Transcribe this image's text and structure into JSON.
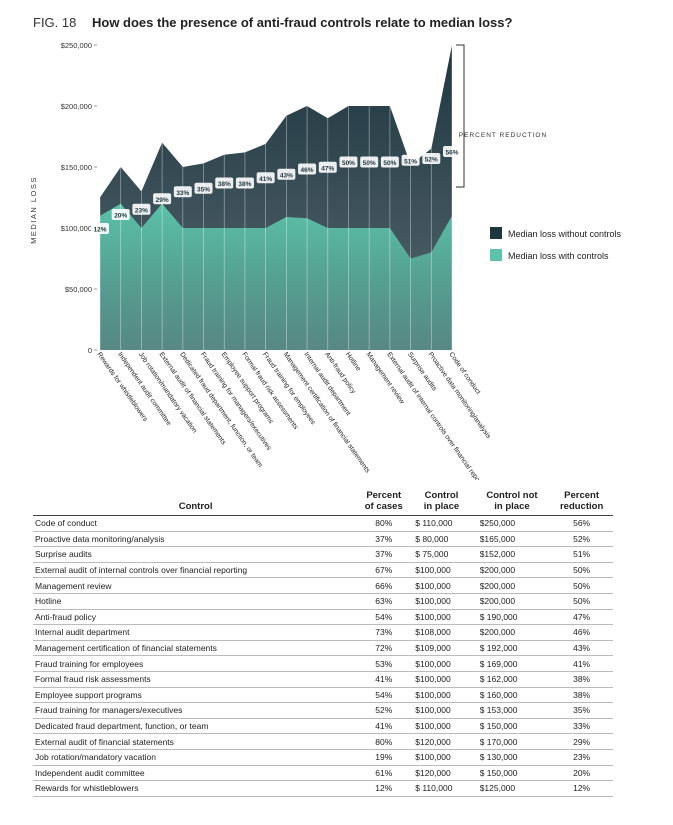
{
  "chart_data": {
    "type": "area",
    "fig": "FIG. 18",
    "title": "How does the presence of anti-fraud controls relate to median loss?",
    "ylabel": "MEDIAN LOSS",
    "annotation": "PERCENT REDUCTION",
    "categories": [
      "Rewards for whistleblowers",
      "Independent audit committee",
      "Job rotation/mandatory vacation",
      "External audit of financial statements",
      "Dedicated fraud department, function, or team",
      "Fraud training for managers/executives",
      "Employee support programs",
      "Formal fraud risk assessments",
      "Fraud training for employees",
      "Management certification of financial statements",
      "Internal audit department",
      "Anti-fraud policy",
      "Hotline",
      "Management review",
      "External audit of internal controls over financial reporting",
      "Surprise audits",
      "Proactive data monitoring/analysis",
      "Code of conduct"
    ],
    "series": [
      {
        "name": "Median loss without controls",
        "color": "#1e3640",
        "values": [
          125000,
          150000,
          130000,
          170000,
          150000,
          153000,
          160000,
          162000,
          169000,
          192000,
          200000,
          190000,
          200000,
          200000,
          200000,
          152000,
          165000,
          250000
        ]
      },
      {
        "name": "Median loss with controls",
        "color": "#5cc2a9",
        "values": [
          110000,
          120000,
          100000,
          120000,
          100000,
          100000,
          100000,
          100000,
          100000,
          109000,
          108000,
          100000,
          100000,
          100000,
          100000,
          75000,
          80000,
          110000
        ]
      }
    ],
    "reduction": {
      "values": [
        12,
        20,
        23,
        29,
        33,
        35,
        38,
        38,
        41,
        43,
        46,
        47,
        50,
        50,
        50,
        51,
        52,
        56
      ],
      "value_labels": [
        "12%",
        "20%",
        "23%",
        "29%",
        "33%",
        "35%",
        "38%",
        "38%",
        "41%",
        "43%",
        "46%",
        "47%",
        "50%",
        "50%",
        "50%",
        "51%",
        "52%",
        "56%"
      ]
    },
    "ylim": [
      0,
      250000
    ],
    "yticks": [
      0,
      {
        "value": 50000,
        "label": "$50,000"
      },
      {
        "value": 100000,
        "label": "$100,000"
      },
      {
        "value": 150000,
        "label": "$150,000"
      },
      {
        "value": 200000,
        "label": "$200,000"
      },
      {
        "value": 250000,
        "label": "$250,000"
      }
    ]
  },
  "table": {
    "columns": [
      [
        "Control"
      ],
      [
        "Percent",
        "of cases"
      ],
      [
        "Control",
        "in place"
      ],
      [
        "Control not",
        "in place"
      ],
      [
        "Percent",
        "reduction"
      ]
    ],
    "rows": [
      [
        "Code of conduct",
        "80%",
        "$ 110,000",
        "$250,000",
        "56%"
      ],
      [
        "Proactive data monitoring/analysis",
        "37%",
        "$ 80,000",
        "$165,000",
        "52%"
      ],
      [
        "Surprise audits",
        "37%",
        "$ 75,000",
        "$152,000",
        "51%"
      ],
      [
        "External audit of internal controls over financial reporting",
        "67%",
        "$100,000",
        "$200,000",
        "50%"
      ],
      [
        "Management review",
        "66%",
        "$100,000",
        "$200,000",
        "50%"
      ],
      [
        "Hotline",
        "63%",
        "$100,000",
        "$200,000",
        "50%"
      ],
      [
        "Anti-fraud policy",
        "54%",
        "$100,000",
        "$ 190,000",
        "47%"
      ],
      [
        "Internal audit department",
        "73%",
        "$108,000",
        "$200,000",
        "46%"
      ],
      [
        "Management certification of financial statements",
        "72%",
        "$109,000",
        "$ 192,000",
        "43%"
      ],
      [
        "Fraud training for employees",
        "53%",
        "$100,000",
        "$ 169,000",
        "41%"
      ],
      [
        "Formal fraud risk assessments",
        "41%",
        "$100,000",
        "$ 162,000",
        "38%"
      ],
      [
        "Employee support programs",
        "54%",
        "$100,000",
        "$ 160,000",
        "38%"
      ],
      [
        "Fraud training for managers/executives",
        "52%",
        "$100,000",
        "$ 153,000",
        "35%"
      ],
      [
        "Dedicated fraud department, function, or team",
        "41%",
        "$100,000",
        "$ 150,000",
        "33%"
      ],
      [
        "External audit of financial statements",
        "80%",
        "$120,000",
        "$ 170,000",
        "29%"
      ],
      [
        "Job rotation/mandatory vacation",
        "19%",
        "$100,000",
        "$ 130,000",
        "23%"
      ],
      [
        "Independent audit committee",
        "61%",
        "$120,000",
        "$ 150,000",
        "20%"
      ],
      [
        "Rewards for whistleblowers",
        "12%",
        "$ 110,000",
        "$125,000",
        "12%"
      ]
    ]
  }
}
